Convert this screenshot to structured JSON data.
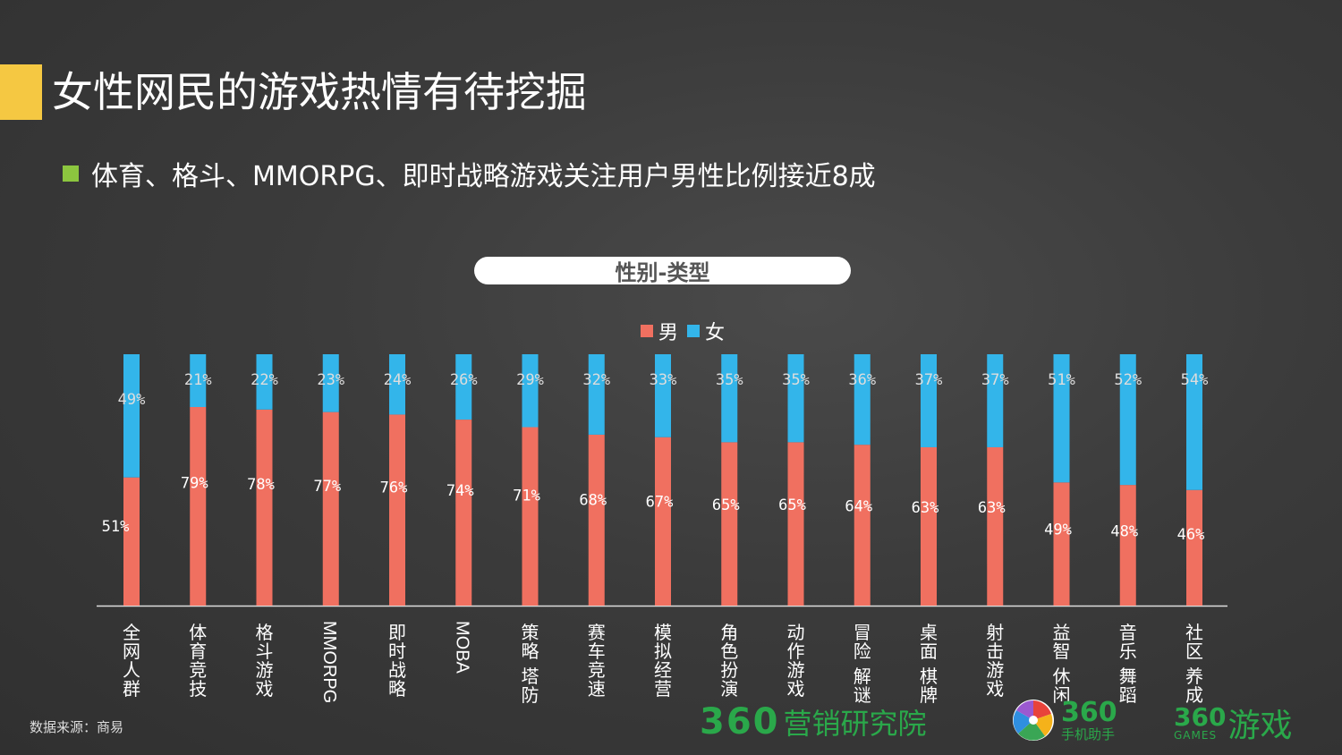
{
  "slide": {
    "title": "女性网民的游戏热情有待挖掘",
    "bullet": "体育、格斗、MMORPG、即时战略游戏关注用户男性比例接近8成",
    "source": "数据来源：商易"
  },
  "colors": {
    "accent": "#f5c842",
    "bullet": "#8cc63f",
    "male": "#f07060",
    "female": "#33b5ea",
    "brand_green": "#2aa84a"
  },
  "logos": {
    "marketing_digits": "360",
    "marketing_text": "营销研究院",
    "assistant_digits": "360",
    "assistant_text": "手机助手",
    "games_digits": "360",
    "games_sub": "GAMES",
    "games_text": "游戏"
  },
  "chart_data": {
    "type": "bar",
    "stacked": true,
    "title": "性别-类型",
    "ylim": [
      0,
      100
    ],
    "legend_position": "top",
    "grid": false,
    "categories": [
      "全网人群",
      "体育竞技",
      "格斗游戏",
      "MMORPG",
      "即时战略",
      "MOBA",
      "策略 塔防",
      "赛车竞速",
      "模拟经营",
      "角色扮演",
      "动作游戏",
      "冒险 解谜",
      "桌面 棋牌",
      "射击游戏",
      "益智 休闲",
      "音乐 舞蹈",
      "社区 养成"
    ],
    "series": [
      {
        "name": "男",
        "values": [
          51,
          79,
          78,
          77,
          76,
          74,
          71,
          68,
          67,
          65,
          65,
          64,
          63,
          63,
          49,
          48,
          46
        ]
      },
      {
        "name": "女",
        "values": [
          49,
          21,
          22,
          23,
          24,
          26,
          29,
          32,
          33,
          35,
          35,
          36,
          37,
          37,
          51,
          52,
          54
        ]
      }
    ],
    "value_suffix": "%"
  }
}
